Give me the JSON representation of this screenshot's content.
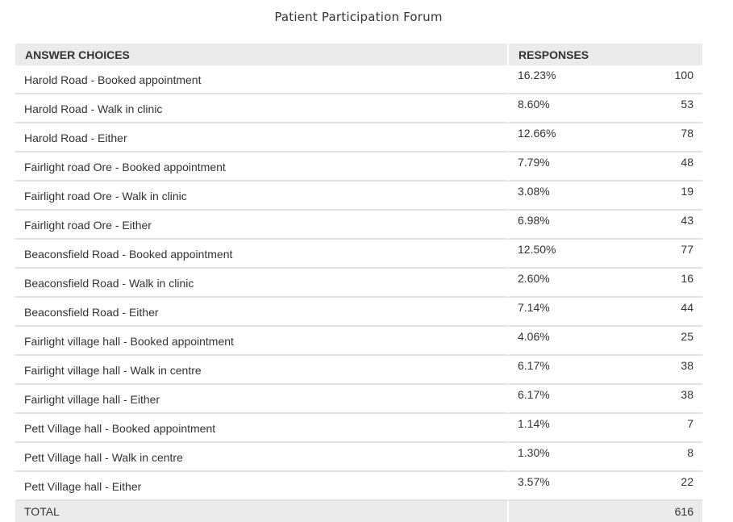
{
  "title": "Patient Participation Forum",
  "table": {
    "headers": {
      "answer_choices": "ANSWER CHOICES",
      "responses": "RESPONSES"
    },
    "rows": [
      {
        "choice": "Harold Road - Booked appointment",
        "percent": "16.23%",
        "count": "100"
      },
      {
        "choice": "Harold Road - Walk in clinic",
        "percent": "8.60%",
        "count": "53"
      },
      {
        "choice": "Harold Road - Either",
        "percent": "12.66%",
        "count": "78"
      },
      {
        "choice": "Fairlight road Ore - Booked appointment",
        "percent": "7.79%",
        "count": "48"
      },
      {
        "choice": "Fairlight road Ore - Walk in clinic",
        "percent": "3.08%",
        "count": "19"
      },
      {
        "choice": "Fairlight road Ore - Either",
        "percent": "6.98%",
        "count": "43"
      },
      {
        "choice": "Beaconsfield Road - Booked appointment",
        "percent": "12.50%",
        "count": "77"
      },
      {
        "choice": "Beaconsfield Road - Walk in clinic",
        "percent": "2.60%",
        "count": "16"
      },
      {
        "choice": "Beaconsfield Road - Either",
        "percent": "7.14%",
        "count": "44"
      },
      {
        "choice": "Fairlight village hall - Booked appointment",
        "percent": "4.06%",
        "count": "25"
      },
      {
        "choice": "Fairlight village hall - Walk in centre",
        "percent": "6.17%",
        "count": "38"
      },
      {
        "choice": "Fairlight village hall - Either",
        "percent": "6.17%",
        "count": "38"
      },
      {
        "choice": "Pett Village hall - Booked appointment",
        "percent": "1.14%",
        "count": "7"
      },
      {
        "choice": "Pett Village hall - Walk in centre",
        "percent": "1.30%",
        "count": "8"
      },
      {
        "choice": "Pett Village hall - Either",
        "percent": "3.57%",
        "count": "22"
      }
    ],
    "total": {
      "label": "TOTAL",
      "count": "616"
    }
  },
  "colors": {
    "header_background": "#ebebeb",
    "row_divider": "#e2e2e2",
    "text": "#333333"
  }
}
